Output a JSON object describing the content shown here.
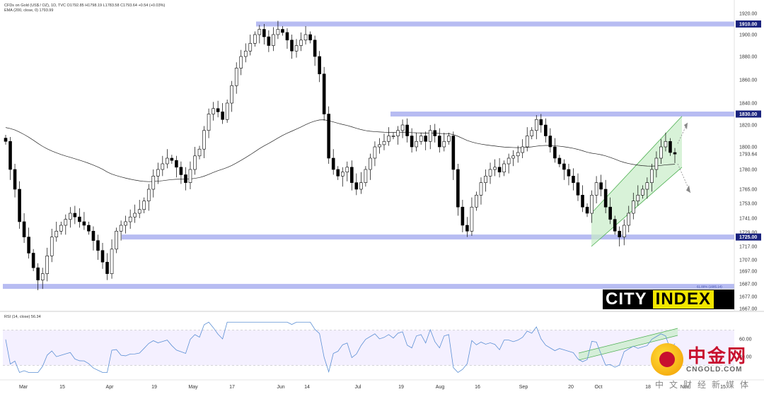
{
  "legend": {
    "title": "CFDs on Gold (US$ / OZ), 1D, TVC  O1792.85  H1798.19  L1783.58  C1793.64  +0.54 (+0.03%)",
    "ema": "EMA (200, close, 0)  1793.99",
    "rsi": "RSI (14, close)  56.34"
  },
  "logos": {
    "city": "CITY",
    "index": "INDEX",
    "cn_name": "中金网",
    "cn_domain": "CNGOLD.COM",
    "cn_sub": "中文财经新媒体"
  },
  "colors": {
    "candle": "#000000",
    "level_band": "#aab0f0",
    "level_tag": "#1a237e",
    "channel_fill": "#c8ecc8",
    "channel_line": "#4caf50",
    "rsi_line": "#5b8fd4",
    "ema_line": "#222222"
  },
  "chart_data": {
    "type": "candlestick",
    "instrument": "CFDs on Gold (US$ / OZ), 1D, TVC",
    "y_axis": {
      "ticks": [
        1920.0,
        1900.0,
        1880.0,
        1860.0,
        1840.0,
        1820.0,
        1800.0,
        1780.0,
        1765.0,
        1753.0,
        1741.0,
        1729.0,
        1717.0,
        1707.0,
        1697.0,
        1687.0,
        1677.0,
        1667.0
      ],
      "highlighted": [
        {
          "label": "1910.00",
          "value": 1910
        },
        {
          "label": "1830.00",
          "value": 1830
        },
        {
          "label": "1793.64",
          "value": 1793.64,
          "style": "plain"
        },
        {
          "label": "1725.00",
          "value": 1725
        }
      ]
    },
    "x_axis": {
      "labels": [
        "Mar",
        "15",
        "Apr",
        "19",
        "May",
        "17",
        "Jun",
        "14",
        "Jul",
        "19",
        "Aug",
        "16",
        "Sep",
        "20",
        "Oct",
        "18",
        "Nov",
        "15"
      ]
    },
    "horizontal_levels": [
      1910,
      1830,
      1725,
      1685
    ],
    "fib_label": "61.80% (1685.14)",
    "last_close": 1793.64,
    "rsi": {
      "last": 56.34,
      "ticks": [
        "60.00",
        "40.00"
      ]
    }
  }
}
